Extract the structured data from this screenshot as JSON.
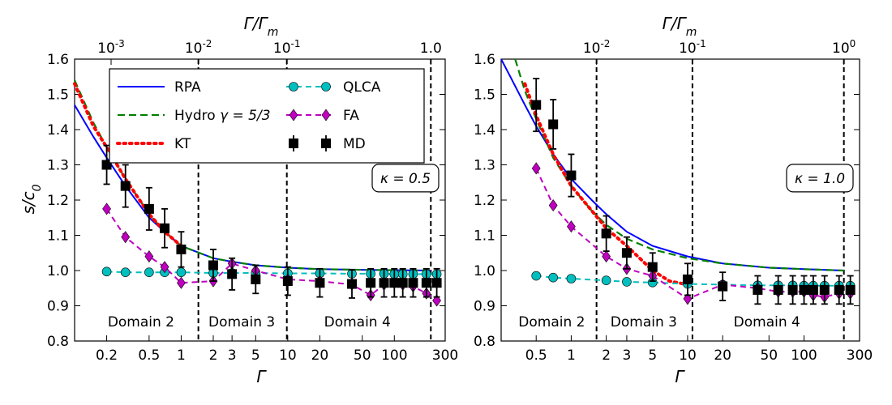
{
  "chart_data": [
    {
      "type": "line",
      "panel": "left",
      "xscale": "log",
      "xlim": [
        0.1,
        300
      ],
      "ylim": [
        0.8,
        1.6
      ],
      "xlabel": "Γ",
      "ylabel": "s/c₀",
      "top_xlabel": "Γ/Γₘ",
      "x_ticks": [
        0.2,
        0.5,
        1,
        2,
        3,
        5,
        10,
        20,
        50,
        100,
        300
      ],
      "x_tick_labels": [
        "0.2",
        "0.5",
        "1",
        "2",
        "3",
        "5",
        "10",
        "20",
        "50",
        "100",
        "300"
      ],
      "y_ticks": [
        0.8,
        0.9,
        1.0,
        1.1,
        1.2,
        1.3,
        1.4,
        1.5,
        1.6
      ],
      "y_tick_labels": [
        "0.8",
        "0.9",
        "1.0",
        "1.1",
        "1.2",
        "1.3",
        "1.4",
        "1.5",
        "1.6"
      ],
      "top_ticks": [
        {
          "at": 0.22,
          "base": "10",
          "exp": "-3"
        },
        {
          "at": 1.45,
          "base": "10",
          "exp": "-2"
        },
        {
          "at": 9.8,
          "base": "10",
          "exp": "-1"
        },
        {
          "at": 220,
          "base": "1.0",
          "exp": ""
        }
      ],
      "vlines": [
        1.45,
        9.8,
        220
      ],
      "domains": [
        {
          "label": "Domain 2",
          "x": 0.42
        },
        {
          "label": "Domain 3",
          "x": 3.7
        },
        {
          "label": "Domain 4",
          "x": 45
        }
      ],
      "annotation": "κ = 0.5",
      "series": [
        {
          "name": "RPA",
          "style": "solid",
          "color": "#0000ff",
          "x": [
            0.1,
            0.15,
            0.2,
            0.3,
            0.5,
            0.7,
            1,
            2,
            3,
            5,
            10,
            20,
            50,
            100,
            220
          ],
          "y": [
            1.47,
            1.38,
            1.32,
            1.24,
            1.15,
            1.11,
            1.07,
            1.035,
            1.025,
            1.015,
            1.008,
            1.004,
            1.002,
            1.001,
            1.0
          ]
        },
        {
          "name": "Hydro γ=5/3",
          "style": "dashed",
          "color": "#008000",
          "x": [
            0.1,
            0.15,
            0.2,
            0.3,
            0.5,
            0.7,
            1,
            2,
            3,
            5,
            10,
            20,
            50,
            100,
            220
          ],
          "y": [
            1.54,
            1.42,
            1.35,
            1.26,
            1.16,
            1.11,
            1.07,
            1.035,
            1.025,
            1.015,
            1.008,
            1.004,
            1.002,
            1.001,
            1.0
          ]
        },
        {
          "name": "KT",
          "style": "dotted",
          "color": "#ff0000",
          "x": [
            0.1,
            0.15,
            0.2,
            0.3,
            0.5,
            0.7,
            1
          ],
          "y": [
            1.53,
            1.41,
            1.35,
            1.26,
            1.16,
            1.11,
            1.07
          ]
        },
        {
          "name": "QLCA",
          "style": "dashed-marker",
          "color": "#00bfbf",
          "marker": "circle",
          "x": [
            0.2,
            0.3,
            0.5,
            0.7,
            1,
            2,
            3,
            5,
            10,
            20,
            40,
            60,
            80,
            100,
            120,
            150,
            200,
            250
          ],
          "y": [
            0.997,
            0.995,
            0.995,
            0.995,
            0.995,
            0.993,
            0.993,
            0.993,
            0.992,
            0.992,
            0.991,
            0.991,
            0.991,
            0.99,
            0.99,
            0.99,
            0.99,
            0.99
          ]
        },
        {
          "name": "FA",
          "style": "dashed-marker",
          "color": "#bf00bf",
          "marker": "diamond",
          "x": [
            0.2,
            0.3,
            0.5,
            0.7,
            1,
            2,
            3,
            5,
            10,
            20,
            40,
            60,
            80,
            100,
            120,
            150,
            200,
            250
          ],
          "y": [
            1.175,
            1.095,
            1.04,
            1.01,
            0.965,
            0.97,
            1.02,
            1.0,
            0.975,
            0.97,
            0.96,
            0.93,
            0.96,
            0.965,
            0.96,
            0.955,
            0.935,
            0.915
          ]
        },
        {
          "name": "MD",
          "style": "errorbar",
          "color": "#000000",
          "marker": "square",
          "x": [
            0.2,
            0.3,
            0.5,
            0.7,
            1,
            2,
            3,
            5,
            10,
            20,
            40,
            60,
            80,
            100,
            120,
            150,
            200,
            250
          ],
          "y": [
            1.3,
            1.24,
            1.175,
            1.12,
            1.06,
            1.015,
            0.99,
            0.975,
            0.97,
            0.965,
            0.962,
            0.965,
            0.965,
            0.965,
            0.965,
            0.965,
            0.965,
            0.965
          ],
          "err": [
            0.055,
            0.06,
            0.06,
            0.055,
            0.05,
            0.045,
            0.045,
            0.04,
            0.04,
            0.04,
            0.04,
            0.04,
            0.04,
            0.04,
            0.04,
            0.04,
            0.04,
            0.04
          ]
        }
      ],
      "legend": {
        "placement": "top-left",
        "columns": [
          [
            {
              "label": "RPA",
              "series": "RPA"
            },
            {
              "label": "Hydro",
              "math": "γ = 5/3",
              "series": "Hydro γ=5/3"
            },
            {
              "label": "KT",
              "series": "KT"
            }
          ],
          [
            {
              "label": "QLCA",
              "series": "QLCA"
            },
            {
              "label": "FA",
              "series": "FA"
            },
            {
              "label": "MD",
              "series": "MD"
            }
          ]
        ]
      }
    },
    {
      "type": "line",
      "panel": "right",
      "xscale": "log",
      "xlim": [
        0.25,
        300
      ],
      "ylim": [
        0.8,
        1.6
      ],
      "xlabel": "Γ",
      "ylabel": "",
      "top_xlabel": "Γ/Γₘ",
      "x_ticks": [
        0.5,
        1,
        2,
        3,
        5,
        10,
        20,
        50,
        100,
        300
      ],
      "x_tick_labels": [
        "0.5",
        "1",
        "2",
        "3",
        "5",
        "10",
        "20",
        "50",
        "100",
        "300"
      ],
      "y_ticks": [
        0.8,
        0.9,
        1.0,
        1.1,
        1.2,
        1.3,
        1.4,
        1.5,
        1.6
      ],
      "y_tick_labels": [
        "0.8",
        "0.9",
        "1.0",
        "1.1",
        "1.2",
        "1.3",
        "1.4",
        "1.5",
        "1.6"
      ],
      "top_ticks": [
        {
          "at": 1.65,
          "base": "10",
          "exp": "-2"
        },
        {
          "at": 11,
          "base": "10",
          "exp": "-1"
        },
        {
          "at": 220,
          "base": "10",
          "exp": "0"
        }
      ],
      "vlines": [
        1.65,
        11,
        220
      ],
      "domains": [
        {
          "label": "Domain 2",
          "x": 0.68
        },
        {
          "label": "Domain 3",
          "x": 4.2
        },
        {
          "label": "Domain 4",
          "x": 48
        }
      ],
      "annotation": "κ = 1.0",
      "series": [
        {
          "name": "RPA",
          "style": "solid",
          "color": "#0000ff",
          "x": [
            0.25,
            0.3,
            0.4,
            0.5,
            0.7,
            1,
            1.5,
            2,
            3,
            5,
            10,
            20,
            50,
            100,
            220
          ],
          "y": [
            1.6,
            1.55,
            1.47,
            1.41,
            1.33,
            1.26,
            1.2,
            1.16,
            1.11,
            1.07,
            1.04,
            1.02,
            1.008,
            1.004,
            1.0
          ]
        },
        {
          "name": "Hydro γ=5/3",
          "style": "dashed",
          "color": "#008000",
          "x": [
            0.33,
            0.4,
            0.5,
            0.7,
            1,
            1.5,
            2,
            3,
            5,
            10,
            20,
            50,
            100,
            220
          ],
          "y": [
            1.6,
            1.51,
            1.43,
            1.32,
            1.24,
            1.17,
            1.13,
            1.09,
            1.06,
            1.035,
            1.02,
            1.008,
            1.004,
            1.0
          ]
        },
        {
          "name": "KT",
          "style": "dotted",
          "color": "#ff0000",
          "x": [
            0.4,
            0.5,
            0.7,
            1,
            1.5,
            2,
            3,
            5,
            7,
            10
          ],
          "y": [
            1.53,
            1.44,
            1.33,
            1.24,
            1.17,
            1.12,
            1.07,
            1.0,
            0.97,
            0.96
          ]
        },
        {
          "name": "QLCA",
          "style": "dashed-marker",
          "color": "#00bfbf",
          "marker": "circle",
          "x": [
            0.5,
            0.7,
            1,
            2,
            3,
            5,
            10,
            20,
            40,
            60,
            80,
            100,
            120,
            150,
            200,
            250
          ],
          "y": [
            0.985,
            0.98,
            0.977,
            0.972,
            0.968,
            0.966,
            0.962,
            0.96,
            0.958,
            0.958,
            0.958,
            0.957,
            0.957,
            0.957,
            0.957,
            0.957
          ]
        },
        {
          "name": "FA",
          "style": "dashed-marker",
          "color": "#bf00bf",
          "marker": "diamond",
          "x": [
            0.5,
            0.7,
            1,
            2,
            3,
            5,
            10,
            20,
            40,
            60,
            80,
            100,
            120,
            150,
            200,
            250
          ],
          "y": [
            1.29,
            1.185,
            1.125,
            1.04,
            1.005,
            0.985,
            0.92,
            0.96,
            0.95,
            0.94,
            0.94,
            0.94,
            0.93,
            0.925,
            0.935,
            0.935
          ]
        },
        {
          "name": "MD",
          "style": "errorbar",
          "color": "#000000",
          "marker": "square",
          "x": [
            0.5,
            0.7,
            1,
            2,
            3,
            5,
            10,
            20,
            40,
            60,
            80,
            100,
            120,
            150,
            200,
            250
          ],
          "y": [
            1.47,
            1.415,
            1.27,
            1.105,
            1.05,
            1.01,
            0.975,
            0.955,
            0.945,
            0.945,
            0.945,
            0.945,
            0.945,
            0.945,
            0.945,
            0.945
          ],
          "err": [
            0.075,
            0.07,
            0.06,
            0.05,
            0.045,
            0.04,
            0.045,
            0.04,
            0.04,
            0.04,
            0.04,
            0.04,
            0.04,
            0.04,
            0.04,
            0.04
          ]
        }
      ]
    }
  ]
}
